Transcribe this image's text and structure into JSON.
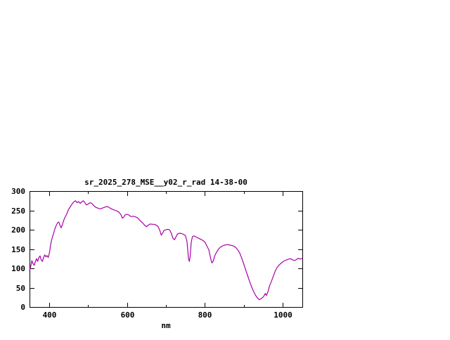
{
  "chart_data": {
    "type": "line",
    "title": "sr_2025_278_MSE__y02_r_rad 14-38-00",
    "xlabel": "nm",
    "ylabel": "",
    "xlim": [
      350,
      1050
    ],
    "ylim": [
      0,
      300
    ],
    "x_ticks_labeled": [
      400,
      600,
      800,
      1000
    ],
    "x_ticks_minor": [
      500,
      700,
      900
    ],
    "y_ticks": [
      0,
      50,
      100,
      150,
      200,
      250,
      300
    ],
    "grid": "off",
    "legend": "none",
    "line_color": "#aa00aa",
    "axis_color": "#000000",
    "points": [
      [
        350,
        95
      ],
      [
        353,
        105
      ],
      [
        356,
        120
      ],
      [
        359,
        112
      ],
      [
        362,
        108
      ],
      [
        365,
        118
      ],
      [
        368,
        125
      ],
      [
        371,
        118
      ],
      [
        374,
        128
      ],
      [
        377,
        132
      ],
      [
        380,
        122
      ],
      [
        383,
        118
      ],
      [
        386,
        128
      ],
      [
        389,
        135
      ],
      [
        392,
        130
      ],
      [
        395,
        133
      ],
      [
        398,
        128
      ],
      [
        401,
        140
      ],
      [
        404,
        160
      ],
      [
        407,
        175
      ],
      [
        410,
        185
      ],
      [
        413,
        195
      ],
      [
        416,
        205
      ],
      [
        419,
        212
      ],
      [
        422,
        218
      ],
      [
        425,
        220
      ],
      [
        428,
        212
      ],
      [
        431,
        205
      ],
      [
        434,
        212
      ],
      [
        437,
        222
      ],
      [
        440,
        230
      ],
      [
        445,
        240
      ],
      [
        450,
        252
      ],
      [
        455,
        260
      ],
      [
        460,
        268
      ],
      [
        465,
        273
      ],
      [
        468,
        275
      ],
      [
        472,
        270
      ],
      [
        476,
        273
      ],
      [
        480,
        268
      ],
      [
        484,
        272
      ],
      [
        488,
        275
      ],
      [
        492,
        270
      ],
      [
        496,
        264
      ],
      [
        500,
        266
      ],
      [
        505,
        270
      ],
      [
        510,
        268
      ],
      [
        515,
        262
      ],
      [
        520,
        258
      ],
      [
        525,
        256
      ],
      [
        530,
        254
      ],
      [
        535,
        255
      ],
      [
        540,
        257
      ],
      [
        545,
        259
      ],
      [
        550,
        260
      ],
      [
        555,
        257
      ],
      [
        560,
        254
      ],
      [
        565,
        252
      ],
      [
        570,
        250
      ],
      [
        575,
        248
      ],
      [
        580,
        245
      ],
      [
        585,
        238
      ],
      [
        588,
        230
      ],
      [
        591,
        232
      ],
      [
        595,
        238
      ],
      [
        600,
        240
      ],
      [
        605,
        238
      ],
      [
        610,
        234
      ],
      [
        615,
        235
      ],
      [
        620,
        234
      ],
      [
        625,
        232
      ],
      [
        630,
        228
      ],
      [
        635,
        222
      ],
      [
        640,
        218
      ],
      [
        645,
        212
      ],
      [
        650,
        208
      ],
      [
        655,
        212
      ],
      [
        660,
        215
      ],
      [
        665,
        214
      ],
      [
        670,
        214
      ],
      [
        675,
        212
      ],
      [
        680,
        208
      ],
      [
        685,
        196
      ],
      [
        688,
        186
      ],
      [
        691,
        190
      ],
      [
        695,
        198
      ],
      [
        700,
        200
      ],
      [
        705,
        201
      ],
      [
        710,
        199
      ],
      [
        714,
        190
      ],
      [
        718,
        178
      ],
      [
        722,
        174
      ],
      [
        726,
        182
      ],
      [
        730,
        189
      ],
      [
        735,
        191
      ],
      [
        740,
        190
      ],
      [
        745,
        188
      ],
      [
        750,
        185
      ],
      [
        754,
        170
      ],
      [
        758,
        125
      ],
      [
        760,
        118
      ],
      [
        762,
        130
      ],
      [
        765,
        168
      ],
      [
        768,
        182
      ],
      [
        772,
        184
      ],
      [
        776,
        182
      ],
      [
        780,
        180
      ],
      [
        785,
        177
      ],
      [
        790,
        175
      ],
      [
        795,
        172
      ],
      [
        800,
        168
      ],
      [
        805,
        158
      ],
      [
        810,
        148
      ],
      [
        815,
        125
      ],
      [
        818,
        114
      ],
      [
        821,
        118
      ],
      [
        825,
        132
      ],
      [
        830,
        142
      ],
      [
        835,
        150
      ],
      [
        840,
        155
      ],
      [
        845,
        158
      ],
      [
        850,
        160
      ],
      [
        855,
        161
      ],
      [
        860,
        161
      ],
      [
        865,
        160
      ],
      [
        870,
        159
      ],
      [
        875,
        157
      ],
      [
        880,
        153
      ],
      [
        885,
        147
      ],
      [
        890,
        138
      ],
      [
        895,
        125
      ],
      [
        900,
        110
      ],
      [
        905,
        95
      ],
      [
        910,
        80
      ],
      [
        915,
        65
      ],
      [
        920,
        52
      ],
      [
        925,
        40
      ],
      [
        930,
        30
      ],
      [
        935,
        23
      ],
      [
        940,
        19
      ],
      [
        945,
        22
      ],
      [
        950,
        26
      ],
      [
        955,
        35
      ],
      [
        958,
        30
      ],
      [
        962,
        40
      ],
      [
        966,
        55
      ],
      [
        970,
        65
      ],
      [
        975,
        78
      ],
      [
        980,
        92
      ],
      [
        985,
        102
      ],
      [
        990,
        108
      ],
      [
        995,
        113
      ],
      [
        1000,
        117
      ],
      [
        1005,
        120
      ],
      [
        1010,
        122
      ],
      [
        1015,
        124
      ],
      [
        1020,
        125
      ],
      [
        1025,
        122
      ],
      [
        1030,
        120
      ],
      [
        1035,
        123
      ],
      [
        1040,
        126
      ],
      [
        1045,
        124
      ],
      [
        1050,
        126
      ]
    ]
  }
}
